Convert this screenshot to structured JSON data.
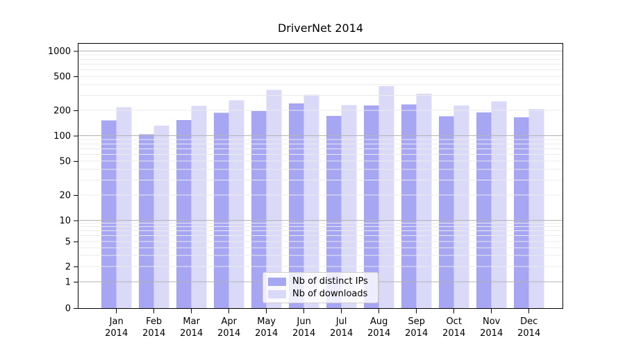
{
  "chart_data": {
    "type": "bar",
    "title": "DriverNet 2014",
    "categories": [
      "Jan 2014",
      "Feb 2014",
      "Mar 2014",
      "Apr 2014",
      "May 2014",
      "Jun 2014",
      "Jul 2014",
      "Aug 2014",
      "Sep 2014",
      "Oct 2014",
      "Nov 2014",
      "Dec 2014"
    ],
    "series": [
      {
        "name": "Nb of distinct IPs",
        "color": "#a6a6f2",
        "values": [
          152,
          104,
          153,
          187,
          195,
          240,
          171,
          227,
          233,
          169,
          188,
          165
        ]
      },
      {
        "name": "Nb of downloads",
        "color": "#dadaf8",
        "values": [
          216,
          132,
          225,
          263,
          348,
          305,
          229,
          385,
          312,
          228,
          254,
          207
        ]
      }
    ],
    "yscale": "symlog",
    "yticks": [
      1000,
      500,
      200,
      100,
      50,
      20,
      10,
      5,
      2,
      1,
      0
    ],
    "ylim": [
      0,
      1250
    ],
    "xlabel": "",
    "ylabel": "",
    "grid": true,
    "legend_position": "lower center",
    "colors": {
      "major_grid": "#b3b3b3",
      "minor_grid": "#ebebeb",
      "spine": "#000000",
      "tick_label": "#000000",
      "background": "#ffffff"
    }
  }
}
